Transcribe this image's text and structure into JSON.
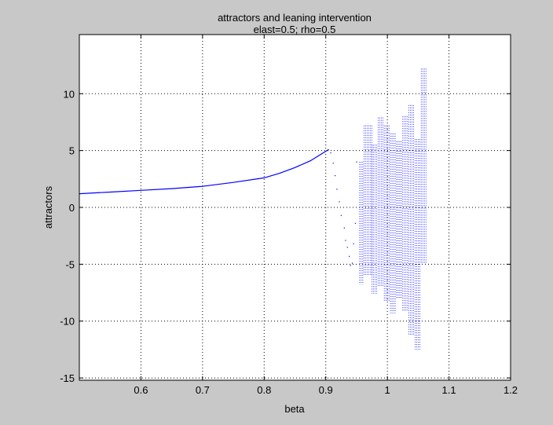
{
  "colors": {
    "figure_bg": "#c8c8c8",
    "axes_bg": "#ffffff",
    "series": "#0000ff",
    "axis": "#000000",
    "grid": "#000000"
  },
  "chart_data": {
    "type": "scatter",
    "title": "attractors and leaning intervention",
    "subtitle": "elast=0.5; rho=0.5",
    "xlabel": "beta",
    "ylabel": "attractors",
    "xlim": [
      0.5,
      1.2
    ],
    "ylim": [
      -15.2,
      15.2
    ],
    "xticks": [
      0.6,
      0.7,
      0.8,
      0.9,
      1.0,
      1.1,
      1.2
    ],
    "xtick_labels": [
      "0.6",
      "0.7",
      "0.8",
      "0.9",
      "1",
      "1.1",
      "1.2"
    ],
    "yticks": [
      -15,
      -10,
      -5,
      0,
      5,
      10
    ],
    "ytick_labels": [
      "-15",
      "-10",
      "-5",
      "0",
      "5",
      "10"
    ],
    "grid": true,
    "grid_style": "dotted",
    "legend": false,
    "series": [
      {
        "style": "line",
        "x": [
          0.5,
          0.55,
          0.6,
          0.65,
          0.7,
          0.75,
          0.8,
          0.825,
          0.85,
          0.875,
          0.89,
          0.905
        ],
        "y": [
          1.2,
          1.35,
          1.5,
          1.65,
          1.85,
          2.2,
          2.6,
          3.0,
          3.5,
          4.1,
          4.6,
          5.1
        ]
      },
      {
        "style": "points",
        "x": [
          0.908,
          0.912,
          0.915,
          0.918,
          0.922,
          0.925,
          0.93,
          0.932,
          0.935,
          0.938,
          0.94,
          0.943,
          0.945,
          0.948,
          0.95
        ],
        "y": [
          4.8,
          3.9,
          2.8,
          1.6,
          0.5,
          -0.7,
          -1.8,
          -2.9,
          -3.5,
          -4.3,
          -5.1,
          -4.9,
          -3.2,
          -1.4,
          4.0
        ]
      },
      {
        "style": "bands",
        "bands": [
          {
            "x": [
              0.955,
              0.962
            ],
            "ymin": -6.8,
            "ymax": 4.0
          },
          {
            "x": [
              0.962,
              0.975
            ],
            "ymin": -6.0,
            "ymax": 7.2
          },
          {
            "x": [
              0.975,
              0.985
            ],
            "ymin": -7.6,
            "ymax": 5.5
          },
          {
            "x": [
              0.985,
              0.995
            ],
            "ymin": -7.0,
            "ymax": 7.9
          },
          {
            "x": [
              0.995,
              1.005
            ],
            "ymin": -8.3,
            "ymax": 7.2
          },
          {
            "x": [
              1.005,
              1.015
            ],
            "ymin": -9.3,
            "ymax": 6.5
          },
          {
            "x": [
              1.015,
              1.025
            ],
            "ymin": -8.0,
            "ymax": 5.8
          },
          {
            "x": [
              1.025,
              1.035
            ],
            "ymin": -9.2,
            "ymax": 8.0
          },
          {
            "x": [
              1.035,
              1.045
            ],
            "ymin": -11.3,
            "ymax": 9.0
          },
          {
            "x": [
              1.045,
              1.055
            ],
            "ymin": -12.5,
            "ymax": 6.0
          },
          {
            "x": [
              1.055,
              1.065
            ],
            "ymin": -5.0,
            "ymax": 12.2
          }
        ]
      }
    ]
  }
}
